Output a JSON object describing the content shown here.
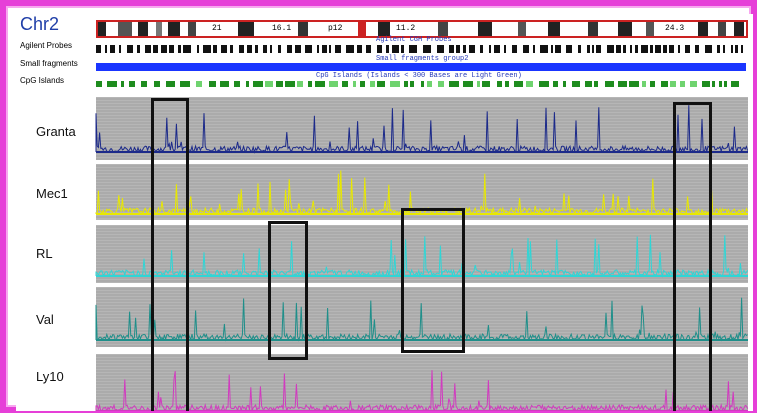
{
  "header": {
    "chromosome": "Chr2",
    "band_labels": [
      "21",
      "16.1",
      "p12",
      "11.2",
      "24.3"
    ],
    "agilent_caption": "Agilent CGH Probes",
    "smallfrag_caption": "Small fragments group2",
    "cpg_caption": "CpG Islands (Islands < 300 Bases are Light Green)"
  },
  "tracks": {
    "agilent": "Agilent Probes",
    "smallfrag": "Small fragments",
    "cpg": "CpG Islands"
  },
  "samples": [
    {
      "name": "Granta",
      "color": "#1c2a8a"
    },
    {
      "name": "Mec1",
      "color": "#e8e800"
    },
    {
      "name": "RL",
      "color": "#2fd6d6"
    },
    {
      "name": "Val",
      "color": "#1f8f8a"
    },
    {
      "name": "Ly10",
      "color": "#d13bbf"
    }
  ],
  "colors": {
    "frame": "#e63fd8",
    "ideogram_border": "#cc2222",
    "smallfrag": "#1a35ff",
    "cpg": "#1e8c1e",
    "panel_bg": "#a9a9a9",
    "highlight": "#111111"
  }
}
